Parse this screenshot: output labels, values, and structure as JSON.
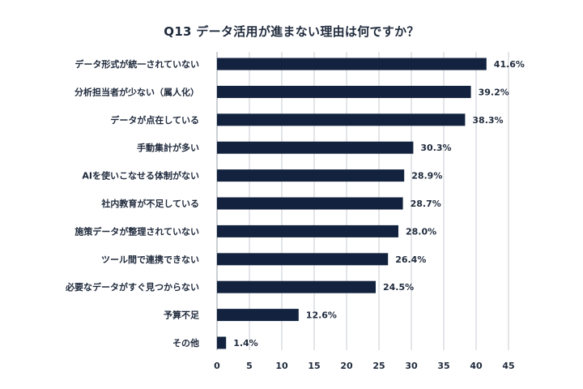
{
  "chart_data": {
    "type": "bar",
    "orientation": "horizontal",
    "title": "Q13 データ活用が進まない理由は何ですか？",
    "xlabel": "",
    "ylabel": "",
    "xlim": [
      0,
      45
    ],
    "x_ticks": [
      "0",
      "5",
      "10",
      "15",
      "20",
      "25",
      "30",
      "35",
      "40",
      "45"
    ],
    "grid": "vertical",
    "legend": "none",
    "bar_color": "#13233f",
    "categories": [
      "データ形式が統一されていない",
      "分析担当者が少ない（属人化）",
      "データが点在している",
      "手動集計が多い",
      "AIを使いこなせる体制がない",
      "社内教育が不足している",
      "施策データが整理されていない",
      "ツール間で連携できない",
      "必要なデータがすぐ見つからない",
      "予算不足",
      "その他"
    ],
    "values": [
      41.6,
      39.2,
      38.3,
      30.3,
      28.9,
      28.7,
      28.0,
      26.4,
      24.5,
      12.6,
      1.4
    ],
    "value_labels": [
      "41.6%",
      "39.2%",
      "38.3%",
      "30.3%",
      "28.9%",
      "28.7%",
      "28.0%",
      "26.4%",
      "24.5%",
      "12.6%",
      "1.4%"
    ]
  }
}
